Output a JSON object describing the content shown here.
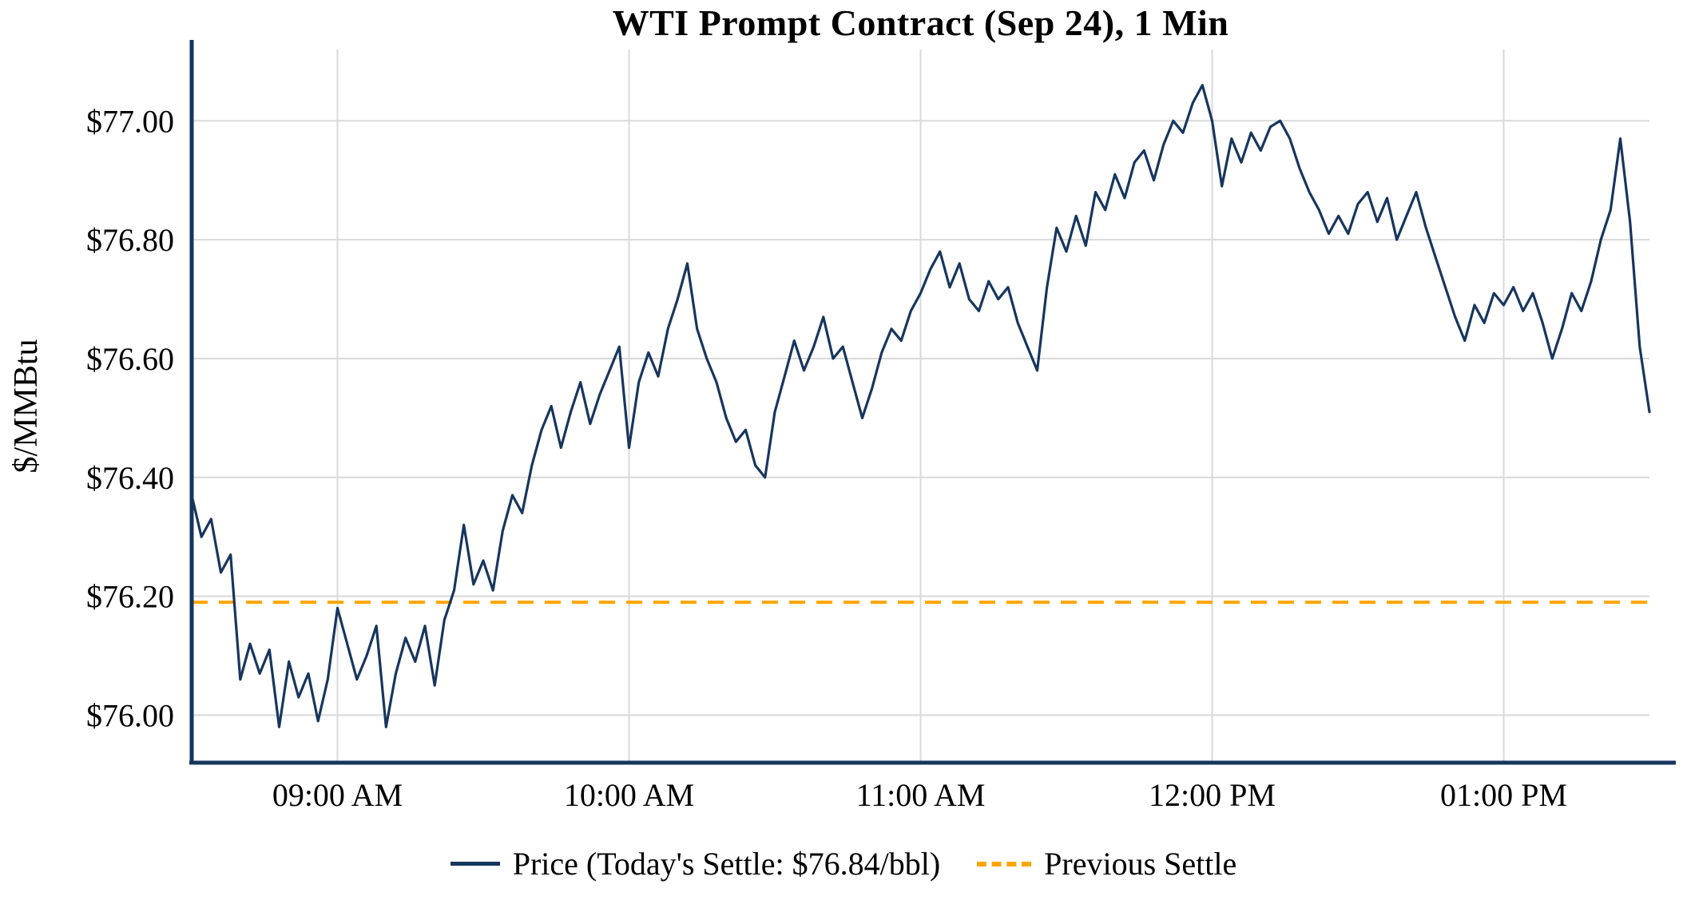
{
  "colors": {
    "axis": "#17365d",
    "grid": "#d9d9d9",
    "text": "#000000",
    "background": "#ffffff"
  },
  "chart_data": {
    "type": "line",
    "title": "WTI Prompt Contract (Sep 24), 1 Min",
    "xlabel": "",
    "ylabel": "$/MMBtu",
    "ylim": [
      75.92,
      77.12
    ],
    "grid": true,
    "x_start_minutes": 510,
    "x_end_minutes": 810,
    "x_step_minutes": 2,
    "x_ticks": [
      {
        "minutes": 540,
        "label": "09:00 AM"
      },
      {
        "minutes": 600,
        "label": "10:00 AM"
      },
      {
        "minutes": 660,
        "label": "11:00 AM"
      },
      {
        "minutes": 720,
        "label": "12:00 PM"
      },
      {
        "minutes": 780,
        "label": "01:00 PM"
      }
    ],
    "y_ticks": [
      {
        "value": 76.0,
        "label": "$76.00"
      },
      {
        "value": 76.2,
        "label": "$76.20"
      },
      {
        "value": 76.4,
        "label": "$76.40"
      },
      {
        "value": 76.6,
        "label": "$76.60"
      },
      {
        "value": 76.8,
        "label": "$76.80"
      },
      {
        "value": 77.0,
        "label": "$77.00"
      }
    ],
    "series": [
      {
        "name": "Price (Today's Settle: $76.84/bbl)",
        "color": "#17365d",
        "todays_settle": "$76.84/bbl",
        "values": [
          76.37,
          76.3,
          76.33,
          76.24,
          76.27,
          76.06,
          76.12,
          76.07,
          76.11,
          75.98,
          76.09,
          76.03,
          76.07,
          75.99,
          76.06,
          76.18,
          76.12,
          76.06,
          76.1,
          76.15,
          75.98,
          76.07,
          76.13,
          76.09,
          76.15,
          76.05,
          76.16,
          76.21,
          76.32,
          76.22,
          76.26,
          76.21,
          76.31,
          76.37,
          76.34,
          76.42,
          76.48,
          76.52,
          76.45,
          76.51,
          76.56,
          76.49,
          76.54,
          76.58,
          76.62,
          76.45,
          76.56,
          76.61,
          76.57,
          76.65,
          76.7,
          76.76,
          76.65,
          76.6,
          76.56,
          76.5,
          76.46,
          76.48,
          76.42,
          76.4,
          76.51,
          76.57,
          76.63,
          76.58,
          76.62,
          76.67,
          76.6,
          76.62,
          76.56,
          76.5,
          76.55,
          76.61,
          76.65,
          76.63,
          76.68,
          76.71,
          76.75,
          76.78,
          76.72,
          76.76,
          76.7,
          76.68,
          76.73,
          76.7,
          76.72,
          76.66,
          76.62,
          76.58,
          76.72,
          76.82,
          76.78,
          76.84,
          76.79,
          76.88,
          76.85,
          76.91,
          76.87,
          76.93,
          76.95,
          76.9,
          76.96,
          77.0,
          76.98,
          77.03,
          77.06,
          77.0,
          76.89,
          76.97,
          76.93,
          76.98,
          76.95,
          76.99,
          77.0,
          76.97,
          76.92,
          76.88,
          76.85,
          76.81,
          76.84,
          76.81,
          76.86,
          76.88,
          76.83,
          76.87,
          76.8,
          76.84,
          76.88,
          76.82,
          76.77,
          76.72,
          76.67,
          76.63,
          76.69,
          76.66,
          76.71,
          76.69,
          76.72,
          76.68,
          76.71,
          76.66,
          76.6,
          76.65,
          76.71,
          76.68,
          76.73,
          76.8,
          76.85,
          76.97,
          76.83,
          76.62,
          76.51
        ]
      }
    ],
    "reference_lines": [
      {
        "name": "Previous Settle",
        "value": 76.19,
        "color": "#FFA500",
        "style": "dashed"
      }
    ],
    "legend": {
      "position": "bottom",
      "entries": [
        {
          "label": "Price (Today's Settle: $76.84/bbl)",
          "color": "#17365d",
          "style": "solid"
        },
        {
          "label": "Previous Settle",
          "color": "#FFA500",
          "style": "dashed"
        }
      ]
    }
  }
}
